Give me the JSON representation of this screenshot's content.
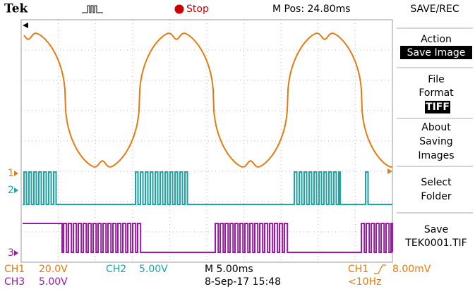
{
  "header": {
    "brand": "Tek",
    "status": "Stop",
    "position": "M Pos: 24.80ms",
    "menu_title": "SAVE/REC"
  },
  "menu": [
    {
      "lines": [
        "Action"
      ],
      "value": "Save Image"
    },
    {
      "lines": [
        "File",
        "Format"
      ],
      "value": "TIFF"
    },
    {
      "lines": [
        "About",
        "Saving",
        "Images"
      ]
    },
    {
      "lines": [
        "Select",
        "Folder"
      ]
    },
    {
      "lines": [
        "Save"
      ],
      "value": "TEK0001.TIF"
    }
  ],
  "markers": [
    "1",
    "2",
    "3"
  ],
  "footer": {
    "ch1": "CH1",
    "ch1_scale": "20.0V",
    "ch2": "CH2",
    "ch2_scale": "5.00V",
    "timebase": "M 5.00ms",
    "trigger_source": "CH1",
    "trigger_level": "8.00mV",
    "ch3": "CH3",
    "ch3_scale": "5.00V",
    "date": "8-Sep-17 15:48",
    "frequency": "<10Hz"
  }
}
